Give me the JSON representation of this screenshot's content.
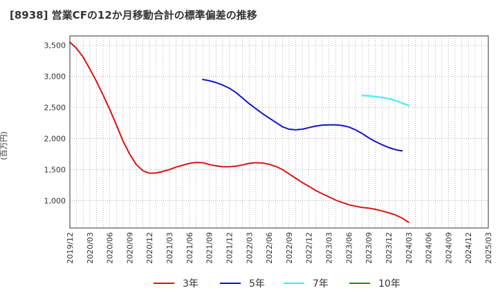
{
  "chart_data": {
    "type": "line",
    "title": "[8938]  営業CFの12か月移動合計の標準偏差の推移",
    "ylabel": "(百万円)",
    "xlabel": "",
    "ylim": [
      560,
      3650
    ],
    "y_ticks": [
      1000,
      1500,
      2000,
      2500,
      3000,
      3500
    ],
    "y_tick_labels": [
      "1,000",
      "1,500",
      "2,000",
      "2,500",
      "3,000",
      "3,500"
    ],
    "x_ticks": [
      "2019/12",
      "2020/03",
      "2020/06",
      "2020/09",
      "2020/12",
      "2021/03",
      "2021/06",
      "2021/09",
      "2021/12",
      "2022/03",
      "2022/06",
      "2022/09",
      "2022/12",
      "2023/03",
      "2023/06",
      "2023/09",
      "2023/12",
      "2024/03",
      "2024/06",
      "2024/09",
      "2024/12",
      "2025/03"
    ],
    "grid": true,
    "legend_position": "bottom",
    "series": [
      {
        "name": "3年",
        "color": "#dd1111",
        "points": [
          [
            "2019/12",
            3550
          ],
          [
            "2020/01",
            3450
          ],
          [
            "2020/02",
            3310
          ],
          [
            "2020/03",
            3120
          ],
          [
            "2020/04",
            2920
          ],
          [
            "2020/05",
            2700
          ],
          [
            "2020/06",
            2470
          ],
          [
            "2020/07",
            2220
          ],
          [
            "2020/08",
            1960
          ],
          [
            "2020/09",
            1750
          ],
          [
            "2020/10",
            1580
          ],
          [
            "2020/11",
            1480
          ],
          [
            "2020/12",
            1440
          ],
          [
            "2021/01",
            1445
          ],
          [
            "2021/02",
            1470
          ],
          [
            "2021/03",
            1500
          ],
          [
            "2021/04",
            1540
          ],
          [
            "2021/05",
            1570
          ],
          [
            "2021/06",
            1600
          ],
          [
            "2021/07",
            1615
          ],
          [
            "2021/08",
            1610
          ],
          [
            "2021/09",
            1580
          ],
          [
            "2021/10",
            1560
          ],
          [
            "2021/11",
            1545
          ],
          [
            "2021/12",
            1545
          ],
          [
            "2022/01",
            1555
          ],
          [
            "2022/02",
            1575
          ],
          [
            "2022/03",
            1600
          ],
          [
            "2022/04",
            1610
          ],
          [
            "2022/05",
            1605
          ],
          [
            "2022/06",
            1585
          ],
          [
            "2022/07",
            1550
          ],
          [
            "2022/08",
            1500
          ],
          [
            "2022/09",
            1430
          ],
          [
            "2022/10",
            1360
          ],
          [
            "2022/11",
            1290
          ],
          [
            "2022/12",
            1230
          ],
          [
            "2023/01",
            1165
          ],
          [
            "2023/02",
            1110
          ],
          [
            "2023/03",
            1060
          ],
          [
            "2023/04",
            1010
          ],
          [
            "2023/05",
            970
          ],
          [
            "2023/06",
            935
          ],
          [
            "2023/07",
            910
          ],
          [
            "2023/08",
            890
          ],
          [
            "2023/09",
            880
          ],
          [
            "2023/10",
            860
          ],
          [
            "2023/11",
            835
          ],
          [
            "2023/12",
            805
          ],
          [
            "2024/01",
            770
          ],
          [
            "2024/02",
            720
          ],
          [
            "2024/03",
            650
          ]
        ]
      },
      {
        "name": "5年",
        "color": "#1111cc",
        "points": [
          [
            "2021/08",
            2950
          ],
          [
            "2021/09",
            2930
          ],
          [
            "2021/10",
            2900
          ],
          [
            "2021/11",
            2860
          ],
          [
            "2021/12",
            2810
          ],
          [
            "2022/01",
            2740
          ],
          [
            "2022/02",
            2650
          ],
          [
            "2022/03",
            2560
          ],
          [
            "2022/04",
            2480
          ],
          [
            "2022/05",
            2400
          ],
          [
            "2022/06",
            2330
          ],
          [
            "2022/07",
            2260
          ],
          [
            "2022/08",
            2190
          ],
          [
            "2022/09",
            2150
          ],
          [
            "2022/10",
            2140
          ],
          [
            "2022/11",
            2150
          ],
          [
            "2022/12",
            2175
          ],
          [
            "2023/01",
            2200
          ],
          [
            "2023/02",
            2215
          ],
          [
            "2023/03",
            2220
          ],
          [
            "2023/04",
            2220
          ],
          [
            "2023/05",
            2210
          ],
          [
            "2023/06",
            2185
          ],
          [
            "2023/07",
            2140
          ],
          [
            "2023/08",
            2080
          ],
          [
            "2023/09",
            2010
          ],
          [
            "2023/10",
            1950
          ],
          [
            "2023/11",
            1900
          ],
          [
            "2023/12",
            1855
          ],
          [
            "2024/01",
            1820
          ],
          [
            "2024/02",
            1800
          ]
        ]
      },
      {
        "name": "7年",
        "color": "#33eeee",
        "points": [
          [
            "2023/08",
            2690
          ],
          [
            "2023/09",
            2685
          ],
          [
            "2023/10",
            2675
          ],
          [
            "2023/11",
            2660
          ],
          [
            "2023/12",
            2640
          ],
          [
            "2024/01",
            2610
          ],
          [
            "2024/02",
            2570
          ],
          [
            "2024/03",
            2530
          ]
        ]
      },
      {
        "name": "10年",
        "color": "#228822",
        "points": []
      }
    ]
  }
}
